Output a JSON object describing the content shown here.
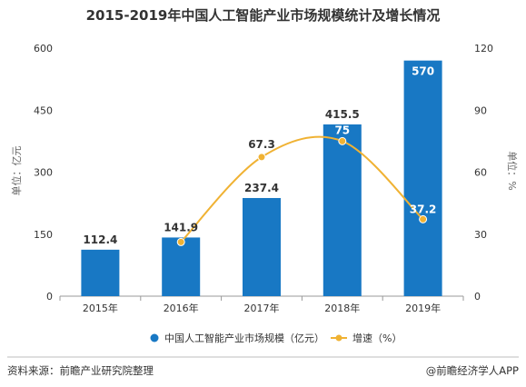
{
  "chart_data": {
    "type": "bar",
    "title": "2015-2019年中国人工智能产业市场规模统计及增长情况",
    "categories": [
      "2015年",
      "2016年",
      "2017年",
      "2018年",
      "2019年"
    ],
    "series": [
      {
        "name": "中国人工智能产业市场规模（亿元）",
        "type": "bar",
        "axis": "left",
        "values": [
          112.4,
          141.9,
          237.4,
          415.5,
          570
        ],
        "labels": [
          "112.4",
          "141.9",
          "237.4",
          "415.5",
          "570"
        ]
      },
      {
        "name": "增速（%）",
        "type": "line",
        "axis": "right",
        "values": [
          null,
          26.2,
          67.3,
          75,
          37.2
        ],
        "labels": [
          "",
          "",
          "67.3",
          "75",
          "37.2"
        ]
      }
    ],
    "yaxis_left": {
      "label": "单位：亿元",
      "range": [
        0,
        600
      ],
      "ticks": [
        "0",
        "150",
        "300",
        "450",
        "600"
      ]
    },
    "yaxis_right": {
      "label": "单位：%",
      "range": [
        0,
        120
      ],
      "ticks": [
        "0",
        "30",
        "60",
        "90",
        "120"
      ]
    },
    "grid": false,
    "legend_position": "bottom",
    "colors": {
      "bar": "#1878c4",
      "line": "#f0b233",
      "text": "#333333",
      "axis": "#999999"
    }
  },
  "footer": {
    "source": "资料来源：前瞻产业研究院整理",
    "credit": "@前瞻经济学人APP"
  }
}
